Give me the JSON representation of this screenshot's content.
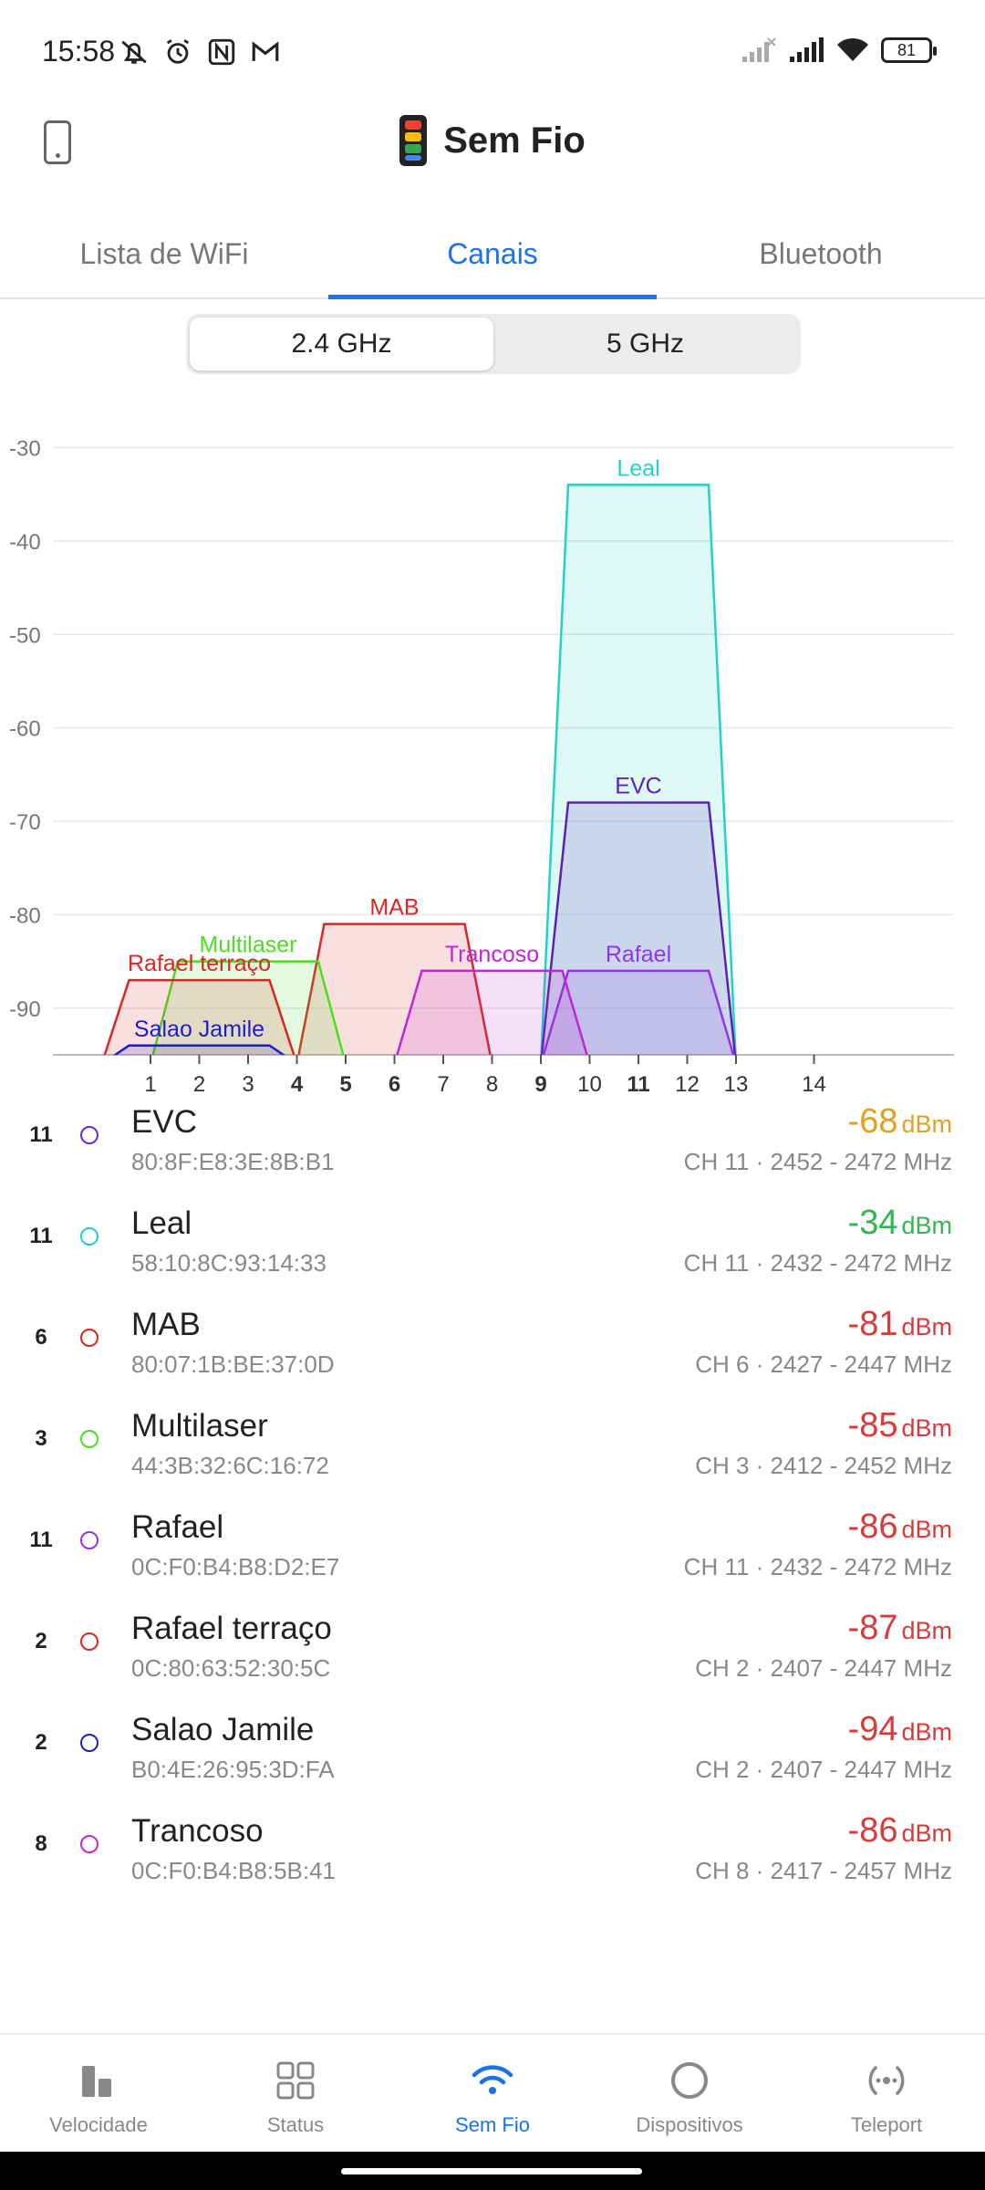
{
  "status_bar": {
    "time": "15:58",
    "left_icons": [
      "mute-icon",
      "alarm-icon",
      "nfc-icon",
      "gmail-icon"
    ],
    "right_icons": [
      "signal-icon-sim2",
      "signal-icon-sim1",
      "wifi-icon"
    ],
    "battery": "81"
  },
  "header": {
    "title": "Sem Fio",
    "left_icon": "device-icon"
  },
  "tabs": [
    {
      "label": "Lista de WiFi",
      "active": false
    },
    {
      "label": "Canais",
      "active": true
    },
    {
      "label": "Bluetooth",
      "active": false
    }
  ],
  "band_toggle": [
    {
      "label": "2.4 GHz",
      "active": true
    },
    {
      "label": "5 GHz",
      "active": false
    }
  ],
  "chart_data": {
    "type": "area",
    "ylim": [
      -95,
      -28
    ],
    "y_ticks": [
      "-30",
      "-40",
      "-50",
      "-60",
      "-70",
      "-80",
      "-90"
    ],
    "x_ticks": [
      {
        "label": "1",
        "bold": false
      },
      {
        "label": "2",
        "bold": false
      },
      {
        "label": "3",
        "bold": false
      },
      {
        "label": "4",
        "bold": true
      },
      {
        "label": "5",
        "bold": true
      },
      {
        "label": "6",
        "bold": true
      },
      {
        "label": "7",
        "bold": false
      },
      {
        "label": "8",
        "bold": false
      },
      {
        "label": "9",
        "bold": true
      },
      {
        "label": "10",
        "bold": false
      },
      {
        "label": "11",
        "bold": true
      },
      {
        "label": "12",
        "bold": false
      },
      {
        "label": "13",
        "bold": false
      },
      {
        "label": "14",
        "bold": false
      }
    ],
    "series": [
      {
        "name": "Leal",
        "channel": 11,
        "low": 9,
        "high": 13,
        "level": -34,
        "color": "#22d3c5"
      },
      {
        "name": "EVC",
        "channel": 11,
        "low": 9,
        "high": 13,
        "level": -68,
        "color": "#5b21b6"
      },
      {
        "name": "MAB",
        "channel": 6,
        "low": 4,
        "high": 8,
        "level": -81,
        "color": "#dc2626"
      },
      {
        "name": "Multilaser",
        "channel": 3,
        "low": 1,
        "high": 5,
        "level": -85,
        "color": "#4ade20"
      },
      {
        "name": "Rafael",
        "channel": 11,
        "low": 9,
        "high": 13,
        "level": -86,
        "color": "#9333ea"
      },
      {
        "name": "Rafael terraço",
        "channel": 2,
        "low": 0,
        "high": 4,
        "level": -87,
        "color": "#dc2626"
      },
      {
        "name": "Salao Jamile",
        "channel": 2,
        "low": 0,
        "high": 4,
        "level": -94,
        "color": "#1d1dcc"
      },
      {
        "name": "Trancoso",
        "channel": 8,
        "low": 6,
        "high": 10,
        "level": -86,
        "color": "#c026d3"
      }
    ]
  },
  "networks": [
    {
      "channel": "11",
      "name": "EVC",
      "mac": "80:8F:E8:3E:8B:B1",
      "signal": "-68",
      "unit": "dBm",
      "signal_color": "#e0a020",
      "freq": "CH 11 · 2452 - 2472 MHz",
      "dot_color": "#6d28d9"
    },
    {
      "channel": "11",
      "name": "Leal",
      "mac": "58:10:8C:93:14:33",
      "signal": "-34",
      "unit": "dBm",
      "signal_color": "#2fb84f",
      "freq": "CH 11 · 2432 - 2472 MHz",
      "dot_color": "#22d3c5"
    },
    {
      "channel": "6",
      "name": "MAB",
      "mac": "80:07:1B:BE:37:0D",
      "signal": "-81",
      "unit": "dBm",
      "signal_color": "#d93a3a",
      "freq": "CH 6 · 2427 - 2447 MHz",
      "dot_color": "#dc2626"
    },
    {
      "channel": "3",
      "name": "Multilaser",
      "mac": "44:3B:32:6C:16:72",
      "signal": "-85",
      "unit": "dBm",
      "signal_color": "#d93a3a",
      "freq": "CH 3 · 2412 - 2452 MHz",
      "dot_color": "#4ade20"
    },
    {
      "channel": "11",
      "name": "Rafael",
      "mac": "0C:F0:B4:B8:D2:E7",
      "signal": "-86",
      "unit": "dBm",
      "signal_color": "#d93a3a",
      "freq": "CH 11 · 2432 - 2472 MHz",
      "dot_color": "#9333ea"
    },
    {
      "channel": "2",
      "name": "Rafael terraço",
      "mac": "0C:80:63:52:30:5C",
      "signal": "-87",
      "unit": "dBm",
      "signal_color": "#d93a3a",
      "freq": "CH 2 · 2407 - 2447 MHz",
      "dot_color": "#dc2626"
    },
    {
      "channel": "2",
      "name": "Salao Jamile",
      "mac": "B0:4E:26:95:3D:FA",
      "signal": "-94",
      "unit": "dBm",
      "signal_color": "#d93a3a",
      "freq": "CH 2 · 2407 - 2447 MHz",
      "dot_color": "#1d1dcc"
    },
    {
      "channel": "8",
      "name": "Trancoso",
      "mac": "0C:F0:B4:B8:5B:41",
      "signal": "-86",
      "unit": "dBm",
      "signal_color": "#d93a3a",
      "freq": "CH 8 · 2417 - 2457 MHz",
      "dot_color": "#c026d3"
    }
  ],
  "bottom_nav": [
    {
      "label": "Velocidade",
      "icon": "speed-bars-icon",
      "active": false
    },
    {
      "label": "Status",
      "icon": "grid-icon",
      "active": false
    },
    {
      "label": "Sem Fio",
      "icon": "wifi-icon",
      "active": true
    },
    {
      "label": "Dispositivos",
      "icon": "circle-icon",
      "active": false
    },
    {
      "label": "Teleport",
      "icon": "teleport-icon",
      "active": false
    }
  ]
}
